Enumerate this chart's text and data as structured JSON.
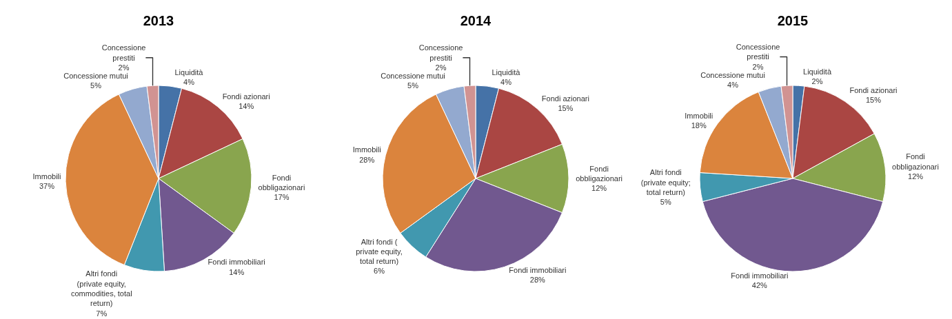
{
  "chart_data": [
    {
      "type": "pie",
      "title": "2013",
      "categories": [
        "Liquidità",
        "Fondi azionari",
        "Fondi obbligazionari",
        "Fondi immobiliari",
        "Altri fondi (private equity, commodities, total return)",
        "Immobili",
        "Concessione mutui",
        "Concessione prestiti"
      ],
      "values": [
        4,
        14,
        17,
        14,
        7,
        37,
        5,
        2
      ],
      "value_labels": [
        "4%",
        "14%",
        "17%",
        "14%",
        "7%",
        "37%",
        "5%",
        "2%"
      ],
      "colors": [
        "#4572a7",
        "#aa4643",
        "#89a54e",
        "#71588f",
        "#4198af",
        "#db843d",
        "#93a9cf",
        "#d19392"
      ],
      "legend": false
    },
    {
      "type": "pie",
      "title": "2014",
      "categories": [
        "Liquidità",
        "Fondi azionari",
        "Fondi obbligazionari",
        "Fondi immobiliari",
        "Altri fondi ( private equity, total return)",
        "Immobili",
        "Concessione mutui",
        "Concessione prestiti"
      ],
      "values": [
        4,
        15,
        12,
        28,
        6,
        28,
        5,
        2
      ],
      "value_labels": [
        "4%",
        "15%",
        "12%",
        "28%",
        "6%",
        "28%",
        "5%",
        "2%"
      ],
      "colors": [
        "#4572a7",
        "#aa4643",
        "#89a54e",
        "#71588f",
        "#4198af",
        "#db843d",
        "#93a9cf",
        "#d19392"
      ],
      "legend": false
    },
    {
      "type": "pie",
      "title": "2015",
      "categories": [
        "Liquidità",
        "Fondi azionari",
        "Fondi obbligazionari",
        "Fondi immobiliari",
        "Altri fondi (private equity; total return)",
        "Immobili",
        "Concessione mutui",
        "Concessione prestiti"
      ],
      "values": [
        2,
        15,
        12,
        42,
        5,
        18,
        4,
        2
      ],
      "value_labels": [
        "2%",
        "15%",
        "12%",
        "42%",
        "5%",
        "18%",
        "4%",
        "2%"
      ],
      "colors": [
        "#4572a7",
        "#aa4643",
        "#89a54e",
        "#71588f",
        "#4198af",
        "#db843d",
        "#93a9cf",
        "#d19392"
      ],
      "legend": false
    }
  ]
}
